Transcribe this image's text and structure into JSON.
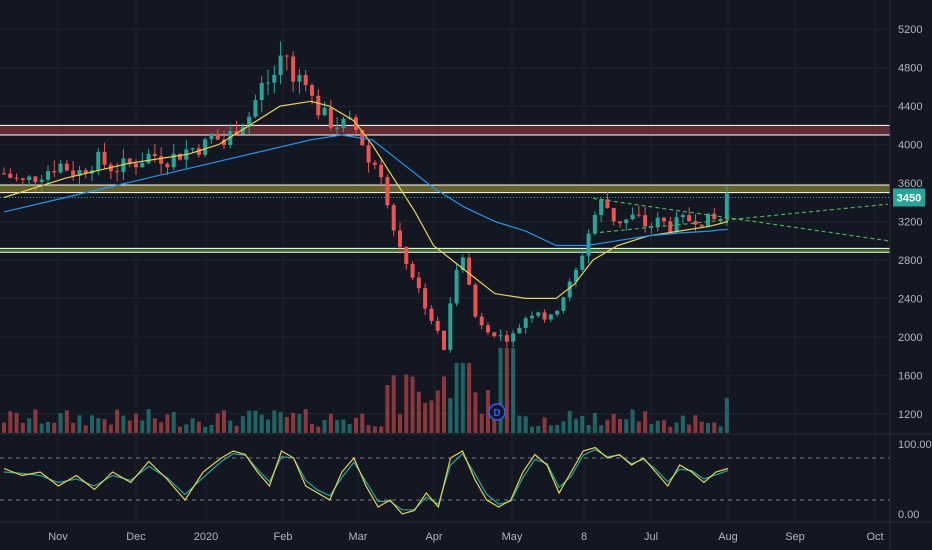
{
  "chart_data": [
    {
      "type": "candlestick",
      "panel": "price",
      "x_labels": [
        "Nov",
        "Dec",
        "2020",
        "Feb",
        "Mar",
        "Apr",
        "May",
        "8",
        "Jul",
        "Aug",
        "Sep",
        "Oct"
      ],
      "y_ticks": [
        1200,
        1600,
        2000,
        2400,
        2800,
        3200,
        3600,
        4000,
        4400,
        4800,
        5200
      ],
      "ylim": [
        1000,
        5400
      ],
      "current_price": "3450",
      "dividend_marker": "D",
      "price_path": [
        [
          0,
          3700
        ],
        [
          3,
          3600
        ],
        [
          6,
          3700
        ],
        [
          9,
          3800
        ],
        [
          12,
          3700
        ],
        [
          15,
          3850
        ],
        [
          18,
          3750
        ],
        [
          21,
          3800
        ],
        [
          24,
          3900
        ],
        [
          27,
          3850
        ],
        [
          30,
          3950
        ],
        [
          33,
          4000
        ],
        [
          34,
          4100
        ],
        [
          36,
          4000
        ],
        [
          38,
          4200
        ],
        [
          40,
          4300
        ],
        [
          42,
          4600
        ],
        [
          44,
          4700
        ],
        [
          45,
          4900
        ],
        [
          46,
          5000
        ],
        [
          47,
          4600
        ],
        [
          48,
          4700
        ],
        [
          49,
          4800
        ],
        [
          50,
          4500
        ],
        [
          51,
          4400
        ],
        [
          52,
          4300
        ],
        [
          53,
          4250
        ],
        [
          55,
          4200
        ],
        [
          57,
          4200
        ],
        [
          58,
          4100
        ],
        [
          59,
          3950
        ],
        [
          60,
          3700
        ],
        [
          61,
          3900
        ],
        [
          62,
          3600
        ],
        [
          63,
          3200
        ],
        [
          65,
          2900
        ],
        [
          67,
          2600
        ],
        [
          69,
          2300
        ],
        [
          71,
          2000
        ],
        [
          72,
          1850
        ],
        [
          73,
          2400
        ],
        [
          74,
          2800
        ],
        [
          75,
          2900
        ],
        [
          76,
          2500
        ],
        [
          77,
          2200
        ],
        [
          79,
          2100
        ],
        [
          81,
          2000
        ],
        [
          83,
          2000
        ],
        [
          85,
          2200
        ],
        [
          87,
          2300
        ],
        [
          89,
          2150
        ],
        [
          91,
          2400
        ],
        [
          93,
          2600
        ],
        [
          95,
          3000
        ],
        [
          96,
          3200
        ],
        [
          97,
          3350
        ],
        [
          98,
          3450
        ],
        [
          99,
          3250
        ],
        [
          101,
          3200
        ],
        [
          103,
          3250
        ],
        [
          105,
          3150
        ],
        [
          107,
          3200
        ],
        [
          109,
          3150
        ],
        [
          111,
          3200
        ],
        [
          113,
          3250
        ],
        [
          115,
          3200
        ],
        [
          117,
          3230
        ],
        [
          118,
          3480
        ]
      ],
      "sma_50": [
        [
          0,
          3450
        ],
        [
          10,
          3650
        ],
        [
          20,
          3800
        ],
        [
          30,
          3900
        ],
        [
          35,
          4000
        ],
        [
          40,
          4200
        ],
        [
          45,
          4400
        ],
        [
          50,
          4450
        ],
        [
          53,
          4400
        ],
        [
          57,
          4250
        ],
        [
          60,
          4000
        ],
        [
          63,
          3700
        ],
        [
          67,
          3300
        ],
        [
          70,
          2950
        ],
        [
          73,
          2800
        ],
        [
          76,
          2650
        ],
        [
          80,
          2450
        ],
        [
          85,
          2400
        ],
        [
          90,
          2400
        ],
        [
          93,
          2550
        ],
        [
          96,
          2800
        ],
        [
          100,
          2950
        ],
        [
          105,
          3050
        ],
        [
          110,
          3100
        ],
        [
          115,
          3150
        ],
        [
          118,
          3200
        ]
      ],
      "sma_200": [
        [
          0,
          3300
        ],
        [
          10,
          3450
        ],
        [
          20,
          3600
        ],
        [
          30,
          3750
        ],
        [
          40,
          3900
        ],
        [
          50,
          4050
        ],
        [
          55,
          4100
        ],
        [
          60,
          4050
        ],
        [
          65,
          3800
        ],
        [
          70,
          3550
        ],
        [
          75,
          3350
        ],
        [
          80,
          3200
        ],
        [
          85,
          3100
        ],
        [
          90,
          2950
        ],
        [
          95,
          2950
        ],
        [
          100,
          3000
        ],
        [
          105,
          3050
        ],
        [
          110,
          3080
        ],
        [
          115,
          3100
        ],
        [
          118,
          3120
        ]
      ],
      "zones": [
        {
          "name": "resistance-red",
          "low": 4100,
          "high": 4200,
          "color": "#ef5350"
        },
        {
          "name": "resistance-yellow",
          "low": 3500,
          "high": 3580,
          "color": "#ffeb3b"
        },
        {
          "name": "support-green",
          "low": 2880,
          "high": 2920,
          "color": "#76ff03"
        }
      ],
      "triangle_upper": [
        [
          96,
          3440
        ],
        [
          125,
          3200
        ]
      ],
      "triangle_lower": [
        [
          96,
          3080
        ],
        [
          125,
          3260
        ]
      ],
      "n_bars": 140
    },
    {
      "type": "line",
      "panel": "stochastic",
      "y_ticks_labels": [
        "100.00",
        "0.00"
      ],
      "ylim": [
        0,
        100
      ],
      "levels": [
        80,
        20
      ],
      "k_line": [
        [
          0,
          65
        ],
        [
          3,
          55
        ],
        [
          6,
          60
        ],
        [
          9,
          40
        ],
        [
          12,
          55
        ],
        [
          15,
          35
        ],
        [
          18,
          60
        ],
        [
          21,
          45
        ],
        [
          24,
          75
        ],
        [
          27,
          50
        ],
        [
          30,
          20
        ],
        [
          33,
          60
        ],
        [
          36,
          80
        ],
        [
          38,
          90
        ],
        [
          40,
          85
        ],
        [
          42,
          60
        ],
        [
          44,
          40
        ],
        [
          46,
          90
        ],
        [
          48,
          80
        ],
        [
          50,
          40
        ],
        [
          52,
          30
        ],
        [
          54,
          20
        ],
        [
          56,
          60
        ],
        [
          58,
          80
        ],
        [
          60,
          40
        ],
        [
          62,
          10
        ],
        [
          64,
          20
        ],
        [
          66,
          0
        ],
        [
          68,
          5
        ],
        [
          70,
          30
        ],
        [
          72,
          10
        ],
        [
          74,
          80
        ],
        [
          76,
          90
        ],
        [
          78,
          50
        ],
        [
          80,
          20
        ],
        [
          82,
          10
        ],
        [
          84,
          20
        ],
        [
          86,
          60
        ],
        [
          88,
          85
        ],
        [
          90,
          70
        ],
        [
          92,
          30
        ],
        [
          94,
          60
        ],
        [
          96,
          90
        ],
        [
          98,
          95
        ],
        [
          100,
          80
        ],
        [
          102,
          85
        ],
        [
          104,
          70
        ],
        [
          106,
          80
        ],
        [
          108,
          60
        ],
        [
          110,
          40
        ],
        [
          112,
          70
        ],
        [
          114,
          60
        ],
        [
          116,
          45
        ],
        [
          118,
          60
        ],
        [
          120,
          65
        ]
      ],
      "d_line": [
        [
          0,
          60
        ],
        [
          3,
          58
        ],
        [
          6,
          55
        ],
        [
          9,
          45
        ],
        [
          12,
          50
        ],
        [
          15,
          40
        ],
        [
          18,
          55
        ],
        [
          21,
          48
        ],
        [
          24,
          68
        ],
        [
          27,
          52
        ],
        [
          30,
          28
        ],
        [
          33,
          52
        ],
        [
          36,
          75
        ],
        [
          38,
          86
        ],
        [
          40,
          84
        ],
        [
          42,
          64
        ],
        [
          44,
          46
        ],
        [
          46,
          82
        ],
        [
          48,
          80
        ],
        [
          50,
          48
        ],
        [
          52,
          34
        ],
        [
          54,
          26
        ],
        [
          56,
          52
        ],
        [
          58,
          74
        ],
        [
          60,
          46
        ],
        [
          62,
          18
        ],
        [
          64,
          18
        ],
        [
          66,
          6
        ],
        [
          68,
          6
        ],
        [
          70,
          24
        ],
        [
          72,
          14
        ],
        [
          74,
          70
        ],
        [
          76,
          86
        ],
        [
          78,
          58
        ],
        [
          80,
          28
        ],
        [
          82,
          14
        ],
        [
          84,
          18
        ],
        [
          86,
          52
        ],
        [
          88,
          78
        ],
        [
          90,
          72
        ],
        [
          92,
          38
        ],
        [
          94,
          54
        ],
        [
          96,
          84
        ],
        [
          98,
          92
        ],
        [
          100,
          82
        ],
        [
          102,
          84
        ],
        [
          104,
          72
        ],
        [
          106,
          78
        ],
        [
          108,
          64
        ],
        [
          110,
          46
        ],
        [
          112,
          64
        ],
        [
          114,
          62
        ],
        [
          116,
          50
        ],
        [
          118,
          56
        ],
        [
          120,
          62
        ]
      ]
    }
  ],
  "colors": {
    "background": "#131722",
    "grid": "#1e222d",
    "up": "#26a69a",
    "down": "#ef5350",
    "sma_50": "#e8d44d",
    "sma_200": "#2196f3",
    "triangle": "#4caf50",
    "price_tag": "#26a69a",
    "k_line": "#e8d44d",
    "d_line": "#26a69a",
    "tick_text": "#b2b5be"
  }
}
